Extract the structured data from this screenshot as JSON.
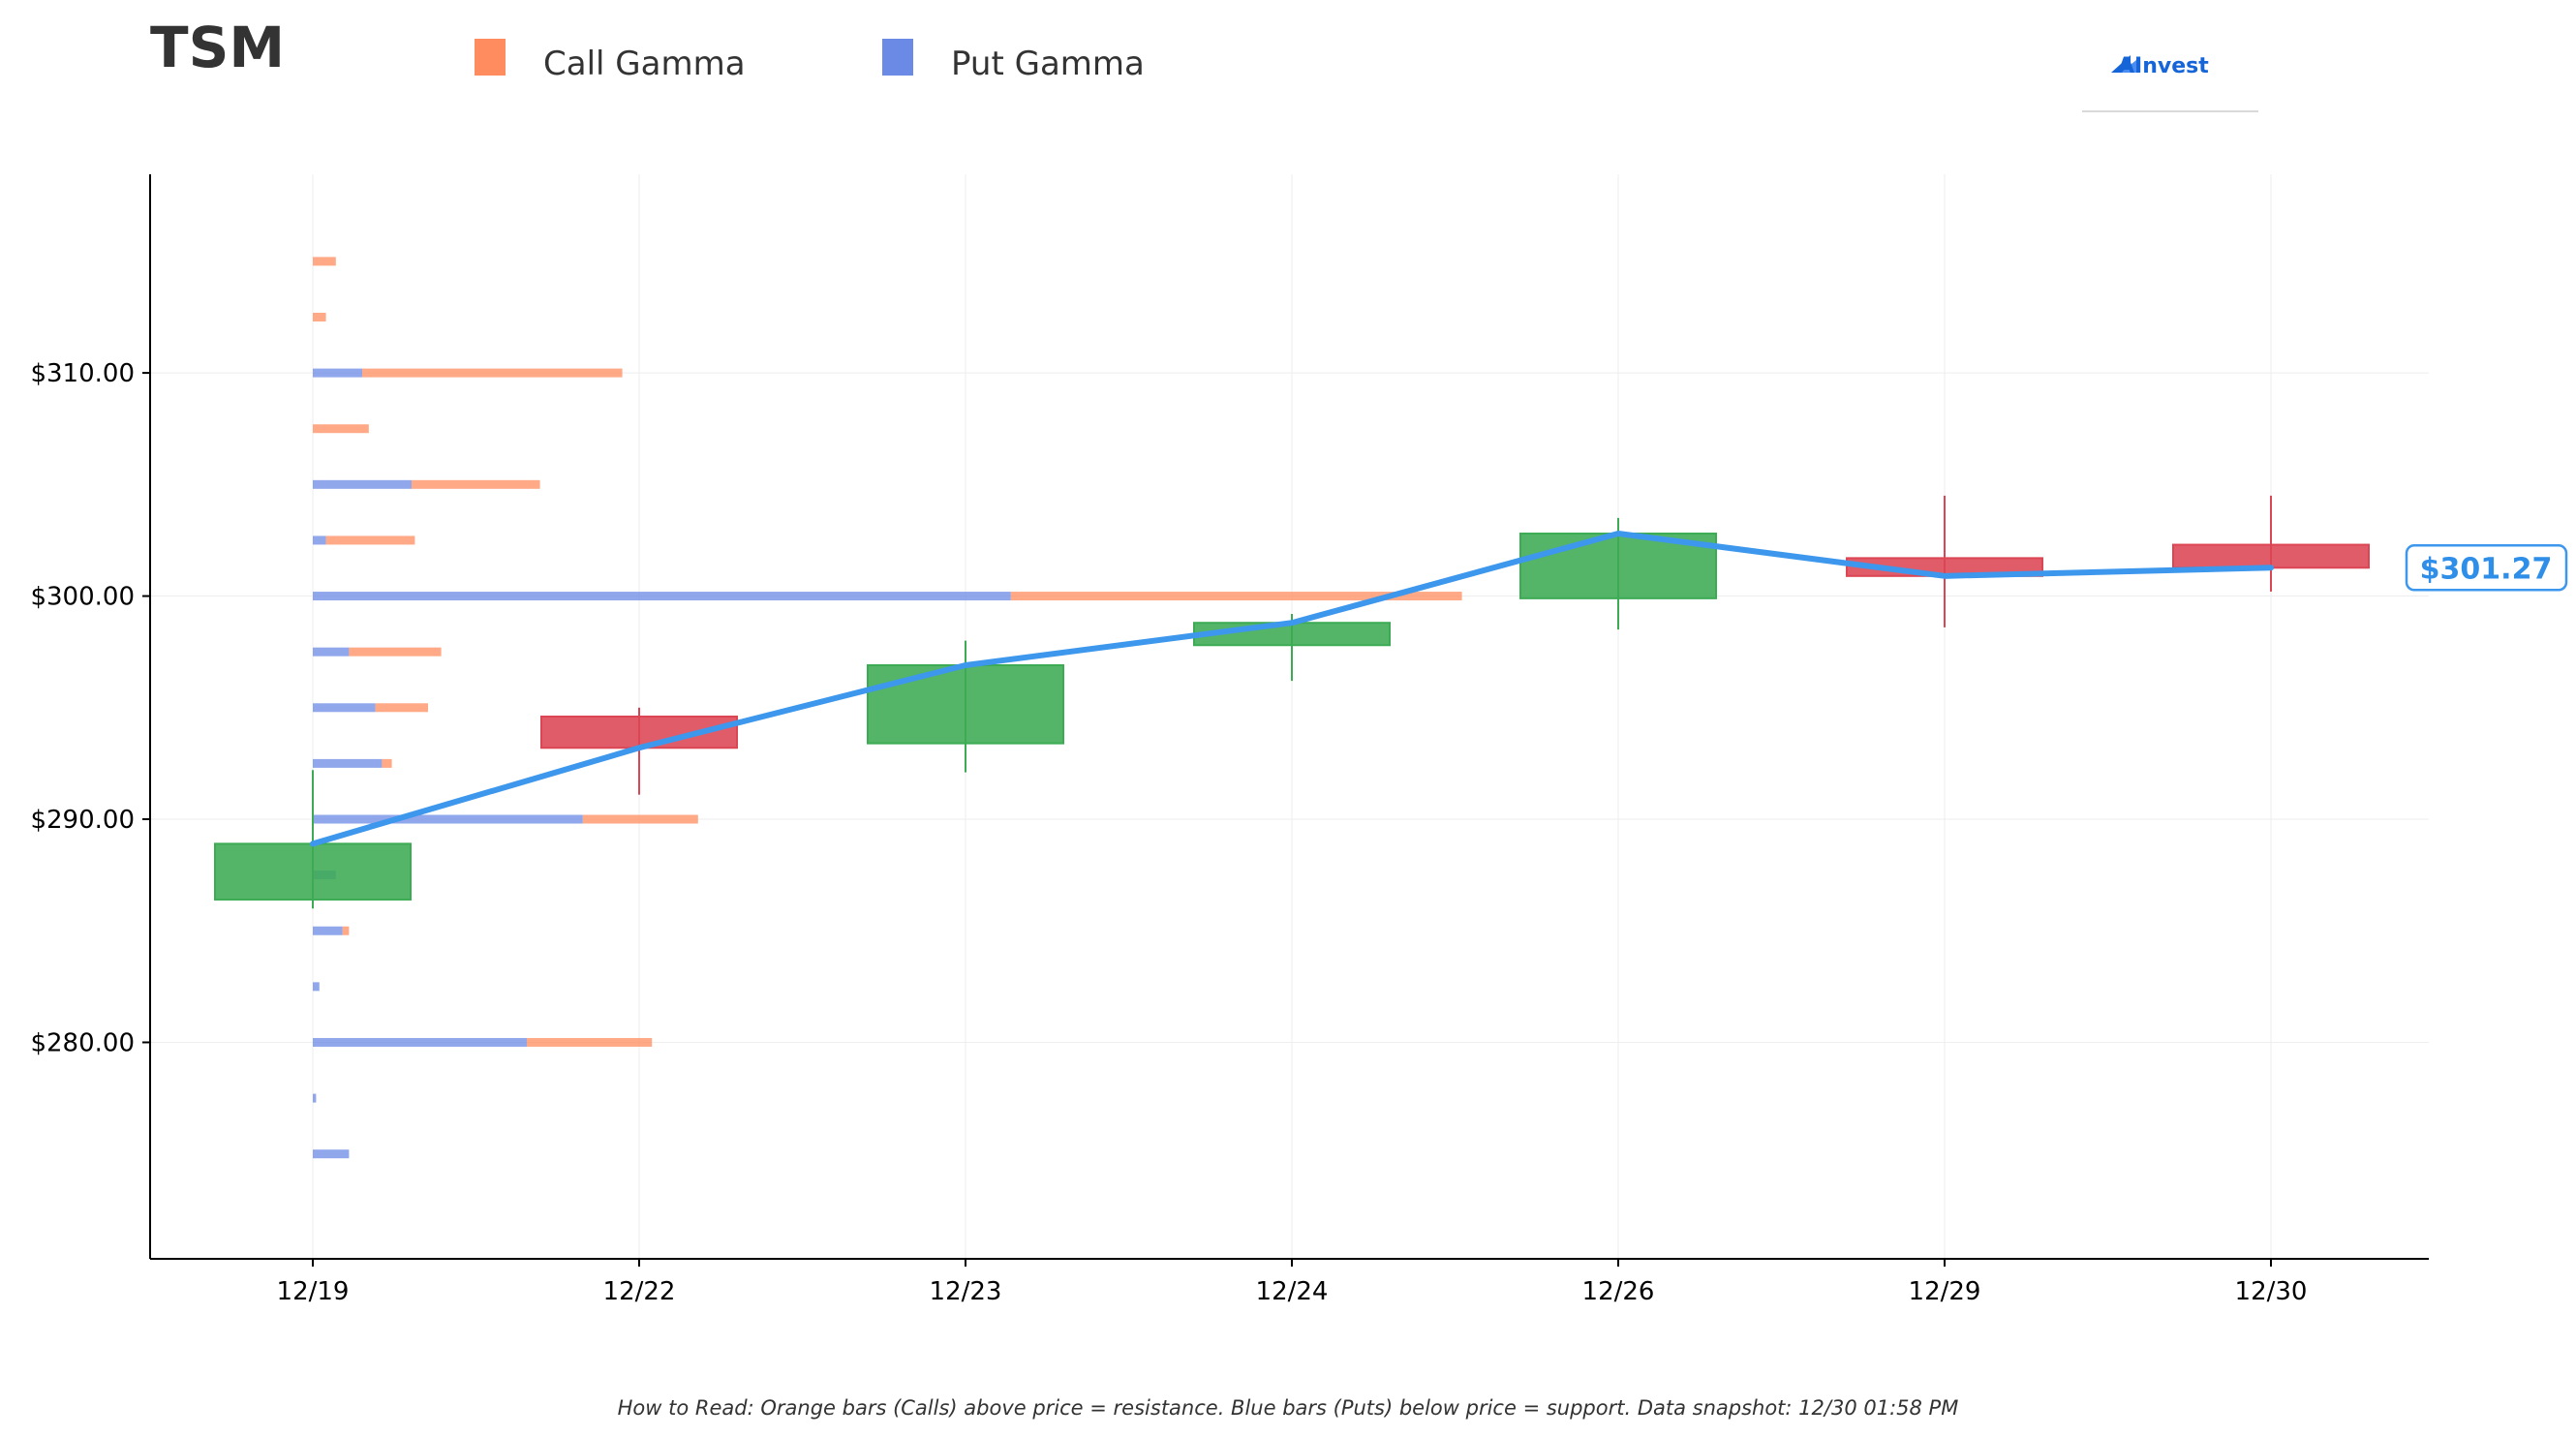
{
  "header": {
    "ticker": "TSM",
    "brand": "AInvest"
  },
  "legend": {
    "call": {
      "label": "Call Gamma",
      "color": "#ff8c5f"
    },
    "put": {
      "label": "Put Gamma",
      "color": "#6b8ae6"
    }
  },
  "footer": {
    "note": "How to Read: Orange bars (Calls) above price = resistance. Blue bars (Puts) below price = support. Data snapshot: 12/30 01:58 PM"
  },
  "chart_data": {
    "type": "candlestick",
    "ylim": [
      270.3,
      318.9
    ],
    "yticks": [
      280,
      290,
      300,
      310
    ],
    "ytick_labels": [
      "$280.00",
      "$290.00",
      "$300.00",
      "$310.00"
    ],
    "categories": [
      "12/19",
      "12/22",
      "12/23",
      "12/24",
      "12/26",
      "12/29",
      "12/30"
    ],
    "colors": {
      "up": "#3cab54",
      "down": "#dc4654",
      "line": "#3d97ec"
    },
    "candles": [
      {
        "date": "12/19",
        "open": 286.4,
        "high": 292.2,
        "low": 286.0,
        "close": 288.9
      },
      {
        "date": "12/22",
        "open": 294.6,
        "high": 295.0,
        "low": 291.1,
        "close": 293.2
      },
      {
        "date": "12/23",
        "open": 293.4,
        "high": 298.0,
        "low": 292.1,
        "close": 296.9
      },
      {
        "date": "12/24",
        "open": 297.8,
        "high": 299.2,
        "low": 296.2,
        "close": 298.8
      },
      {
        "date": "12/26",
        "open": 299.9,
        "high": 303.5,
        "low": 298.5,
        "close": 302.8
      },
      {
        "date": "12/29",
        "open": 301.7,
        "high": 304.5,
        "low": 298.6,
        "close": 300.9
      },
      {
        "date": "12/30",
        "open": 302.3,
        "high": 304.5,
        "low": 300.2,
        "close": 301.27
      }
    ],
    "close_line": [
      288.9,
      293.2,
      296.9,
      298.8,
      302.8,
      300.9,
      301.27
    ],
    "last_price_label": "$301.27",
    "gamma_levels": [
      {
        "strike": 275.0,
        "put": 0.11,
        "call": 0
      },
      {
        "strike": 277.5,
        "put": 0.01,
        "call": 0
      },
      {
        "strike": 280.0,
        "put": 0.65,
        "call": 0.38
      },
      {
        "strike": 282.5,
        "put": 0.02,
        "call": 0
      },
      {
        "strike": 285.0,
        "put": 0.09,
        "call": 0.02
      },
      {
        "strike": 287.5,
        "put": 0.07,
        "call": 0
      },
      {
        "strike": 290.0,
        "put": 0.82,
        "call": 0.35
      },
      {
        "strike": 292.5,
        "put": 0.21,
        "call": 0.03
      },
      {
        "strike": 295.0,
        "put": 0.19,
        "call": 0.16
      },
      {
        "strike": 297.5,
        "put": 0.11,
        "call": 0.28
      },
      {
        "strike": 300.0,
        "put": 2.12,
        "call": 1.37
      },
      {
        "strike": 302.5,
        "put": 0.04,
        "call": 0.27
      },
      {
        "strike": 305.0,
        "put": 0.3,
        "call": 0.39
      },
      {
        "strike": 307.5,
        "put": 0,
        "call": 0.17
      },
      {
        "strike": 310.0,
        "put": 0.15,
        "call": 0.79
      },
      {
        "strike": 312.5,
        "put": 0,
        "call": 0.04
      },
      {
        "strike": 315.0,
        "put": 0,
        "call": 0.07
      }
    ]
  }
}
